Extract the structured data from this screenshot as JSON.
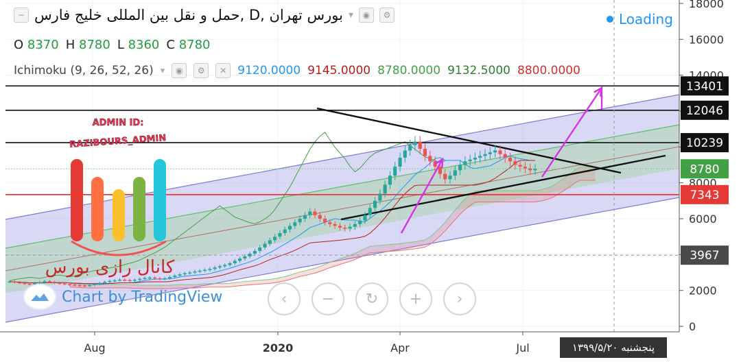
{
  "header": {
    "title": "بورس تهران ,D ,حمل و نقل بین المللی خلیج فارس",
    "loading_label": "Loading",
    "ohlc": [
      {
        "k": "O",
        "v": "8370"
      },
      {
        "k": "H",
        "v": "8780"
      },
      {
        "k": "L",
        "v": "8360"
      },
      {
        "k": "C",
        "v": "8780"
      }
    ],
    "indicator": {
      "name": "Ichimoku (9, 26, 52, 26)",
      "values": [
        {
          "v": "9120.0000",
          "color": "#2196f3"
        },
        {
          "v": "9145.0000",
          "color": "#b71c1c"
        },
        {
          "v": "8780.0000",
          "color": "#43a047"
        },
        {
          "v": "9132.5000",
          "color": "#2e7d32"
        },
        {
          "v": "8800.0000",
          "color": "#d32f2f"
        }
      ]
    }
  },
  "watermark": {
    "admin_id": "ADMIN ID:",
    "admin_handle": "RAZIBOURS_ADMIN",
    "channel_name": "کانال رازی بورس"
  },
  "branding": {
    "text": "Chart by TradingView"
  },
  "nav": {
    "icons": [
      "chevron-left-icon",
      "minus-icon",
      "reset-icon",
      "plus-icon",
      "chevron-right-icon"
    ]
  },
  "date_badge": "پنجشنبه ۱۳۹۹/۵/۲۰",
  "colors": {
    "up": "#26a69a",
    "down": "#ef5350",
    "channel_outer": "#7b7bd8",
    "channel_inner": "#5cbf6a",
    "arrow": "#d633e6"
  },
  "chart_data": {
    "type": "candlestick",
    "ylim": [
      0,
      18000
    ],
    "y_ticks": [
      0,
      2000,
      4000,
      6000,
      8000,
      10000,
      12000,
      14000,
      16000,
      18000
    ],
    "x_ticks": [
      "Aug",
      "2020",
      "Apr",
      "Jul"
    ],
    "price_labels": [
      {
        "value": 13401,
        "style": "dark"
      },
      {
        "value": 12046,
        "style": "dark"
      },
      {
        "value": 10239,
        "style": "dark"
      },
      {
        "value": 8780,
        "style": "current"
      },
      {
        "value": 7343,
        "style": "red"
      },
      {
        "value": 3967,
        "style": "crosshair"
      }
    ],
    "series": [
      {
        "name": "closes",
        "values": [
          2500,
          2450,
          2420,
          2380,
          2350,
          2400,
          2460,
          2520,
          2480,
          2420,
          2390,
          2350,
          2320,
          2300,
          2280,
          2250,
          2300,
          2360,
          2420,
          2480,
          2530,
          2560,
          2600,
          2580,
          2550,
          2600,
          2650,
          2700,
          2720,
          2680,
          2640,
          2680,
          2750,
          2830,
          2900,
          2960,
          3000,
          3060,
          3100,
          3150,
          3200,
          3280,
          3350,
          3420,
          3520,
          3650,
          3780,
          3900,
          4050,
          4200,
          4400,
          4600,
          4800,
          5000,
          5200,
          5400,
          5600,
          5800,
          6000,
          6200,
          6400,
          6200,
          6000,
          5800,
          5700,
          5600,
          5500,
          5450,
          5550,
          5700,
          5900,
          6200,
          6600,
          7000,
          7400,
          7900,
          8400,
          8900,
          9400,
          9800,
          10100,
          10300,
          9900,
          9500,
          9200,
          8900,
          8500,
          8200,
          8400,
          8700,
          9000,
          9200,
          9300,
          9400,
          9500,
          9600,
          9700,
          9800,
          9600,
          9400,
          9200,
          9000,
          8900,
          8800,
          8700,
          8780
        ]
      }
    ]
  }
}
